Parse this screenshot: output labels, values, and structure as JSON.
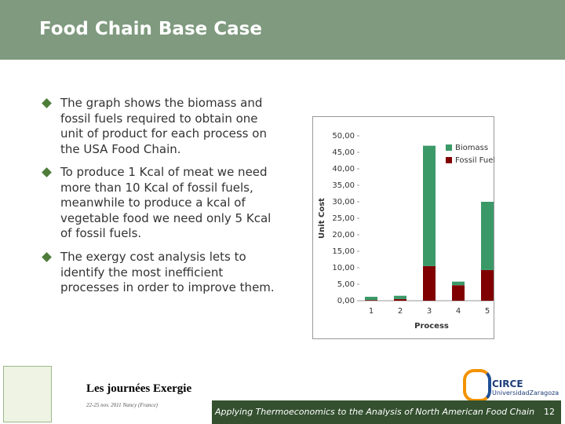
{
  "header": {
    "title": "Food Chain Base Case"
  },
  "bullets": [
    "The graph shows the biomass and fossil fuels required to obtain one unit of product for each process on the USA Food Chain.",
    "To produce 1 Kcal of meat we need more than 10 Kcal of fossil fuels, meanwhile to produce a kcal of vegetable food we need only 5 Kcal of fossil fuels.",
    "The exergy cost analysis lets to identify the most inefficient processes in order to improve them."
  ],
  "chart_data": {
    "type": "stacked-bar",
    "x_label": "Process",
    "y_label": "Unit Cost",
    "categories": [
      "1",
      "2",
      "3",
      "4",
      "5"
    ],
    "series": [
      {
        "name": "Biomass",
        "color": "#3b9968",
        "values": [
          1.0,
          1.0,
          36.5,
          1.1,
          20.7
        ]
      },
      {
        "name": "Fossil Fuels",
        "color": "#800000",
        "values": [
          0.2,
          0.5,
          10.5,
          4.7,
          9.3
        ]
      }
    ],
    "ylim": [
      0,
      50
    ],
    "yticks": [
      {
        "value": 0,
        "label": "0,00"
      },
      {
        "value": 5,
        "label": "5,00"
      },
      {
        "value": 10,
        "label": "10,00"
      },
      {
        "value": 15,
        "label": "15,00"
      },
      {
        "value": 20,
        "label": "20,00"
      },
      {
        "value": 25,
        "label": "25,00"
      },
      {
        "value": 30,
        "label": "30,00"
      },
      {
        "value": 35,
        "label": "35,00"
      },
      {
        "value": 40,
        "label": "40,00"
      },
      {
        "value": 45,
        "label": "45,00"
      },
      {
        "value": 50,
        "label": "50,00"
      }
    ],
    "legend": "top-right"
  },
  "footer": {
    "event": "Les journées Exergie",
    "dates": "22-25 nov. 2011 Nancy (France)",
    "running_title": "Applying Thermoeconomics to the Analysis of North American Food Chain",
    "page_number": "12",
    "logo": "CIRCE",
    "university": "UniversidadZaragoza"
  }
}
